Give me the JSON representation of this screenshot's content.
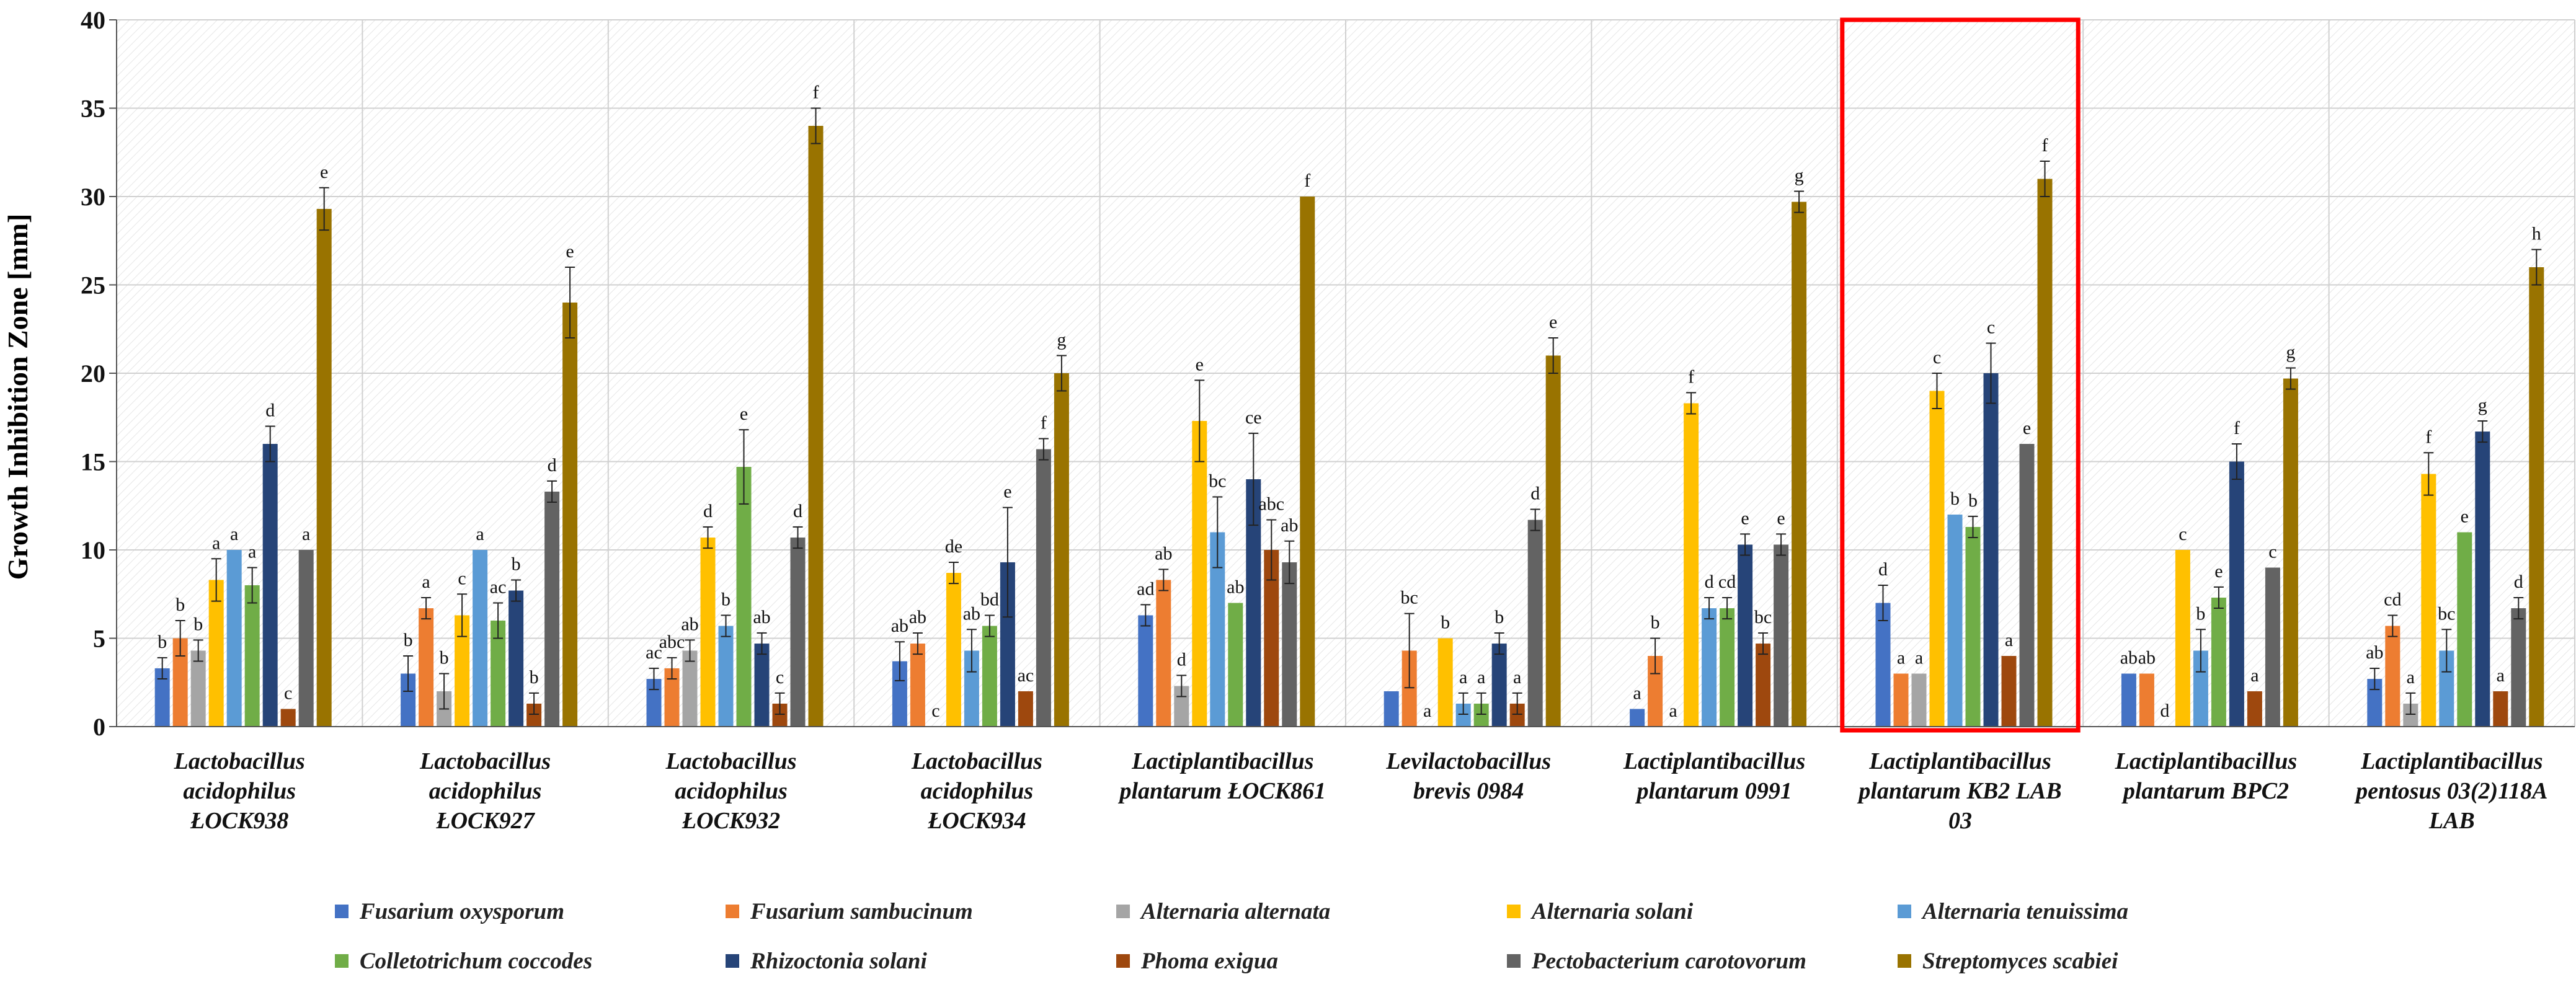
{
  "chart_data": {
    "type": "bar",
    "title": "",
    "ylabel": "Growth Inhibition Zone [mm]",
    "xlabel": "",
    "ylim": [
      0,
      40
    ],
    "yticks": [
      "0",
      "5",
      "10",
      "15",
      "20",
      "25",
      "30",
      "35",
      "40"
    ],
    "grid": true,
    "legend_position": "bottom",
    "categories": [
      [
        "Lactobacillus",
        "acidophilus",
        "ŁOCK938"
      ],
      [
        "Lactobacillus",
        "acidophilus",
        "ŁOCK927"
      ],
      [
        "Lactobacillus",
        "acidophilus",
        "ŁOCK932"
      ],
      [
        "Lactobacillus",
        "acidophilus",
        "ŁOCK934"
      ],
      [
        "Lactiplantibacillus",
        "plantarum ŁOCK861"
      ],
      [
        "Levilactobacillus",
        "brevis 0984"
      ],
      [
        "Lactiplantibacillus",
        "plantarum 0991"
      ],
      [
        "Lactiplantibacillus",
        "plantarum KB2 LAB",
        "03"
      ],
      [
        "Lactiplantibacillus",
        "plantarum BPC2"
      ],
      [
        "Lactiplantibacillus",
        "pentosus 03(2)118A",
        "LAB"
      ]
    ],
    "highlighted_category_index": 7,
    "series": [
      {
        "name": "Fusarium oxysporum",
        "color": "#4472C4",
        "values": [
          3.3,
          3.0,
          2.7,
          3.7,
          6.3,
          2.0,
          1.0,
          7.0,
          3.0,
          2.7
        ],
        "errors": [
          0.6,
          1.0,
          0.6,
          1.1,
          0.6,
          0,
          0,
          1.0,
          0,
          0.6
        ],
        "labels": [
          "b",
          "b",
          "ac",
          "ab",
          "ad",
          "",
          "a",
          "d",
          "ab",
          "ab"
        ]
      },
      {
        "name": "Fusarium sambucinum",
        "color": "#ED7D31",
        "values": [
          5.0,
          6.7,
          3.3,
          4.7,
          8.3,
          4.3,
          4.0,
          3.0,
          3.0,
          5.7
        ],
        "errors": [
          1.0,
          0.6,
          0.6,
          0.6,
          0.6,
          2.1,
          1.0,
          0,
          0,
          0.6
        ],
        "labels": [
          "b",
          "a",
          "abc",
          "ab",
          "ab",
          "bc",
          "b",
          "a",
          "ab",
          "cd"
        ]
      },
      {
        "name": "Alternaria alternata",
        "color": "#A5A5A5",
        "values": [
          4.3,
          2.0,
          4.3,
          0,
          2.3,
          0,
          0,
          3.0,
          0,
          1.3
        ],
        "errors": [
          0.6,
          1.0,
          0.6,
          0,
          0.6,
          0,
          0,
          0,
          0,
          0.6
        ],
        "labels": [
          "b",
          "b",
          "ab",
          "c",
          "d",
          "a",
          "a",
          "a",
          "d",
          "a"
        ]
      },
      {
        "name": "Alternaria solani",
        "color": "#FFC000",
        "values": [
          8.3,
          6.3,
          10.7,
          8.7,
          17.3,
          5.0,
          18.3,
          19.0,
          10.0,
          14.3
        ],
        "errors": [
          1.2,
          1.2,
          0.6,
          0.6,
          2.3,
          0,
          0.6,
          1.0,
          0,
          1.2
        ],
        "labels": [
          "a",
          "c",
          "d",
          "de",
          "e",
          "b",
          "f",
          "c",
          "c",
          "f"
        ]
      },
      {
        "name": "Alternaria tenuissima",
        "color": "#5B9BD5",
        "values": [
          10.0,
          10.0,
          5.7,
          4.3,
          11.0,
          1.3,
          6.7,
          12.0,
          4.3,
          4.3
        ],
        "errors": [
          0,
          0,
          0.6,
          1.2,
          2.0,
          0.6,
          0.6,
          0,
          1.2,
          1.2
        ],
        "labels": [
          "a",
          "a",
          "b",
          "ab",
          "bc",
          "a",
          "d",
          "b",
          "b",
          "bc"
        ]
      },
      {
        "name": "Colletotrichum coccodes",
        "color": "#70AD47",
        "values": [
          8.0,
          6.0,
          14.7,
          5.7,
          7.0,
          1.3,
          6.7,
          11.3,
          7.3,
          11.0
        ],
        "errors": [
          1.0,
          1.0,
          2.1,
          0.6,
          0,
          0.6,
          0.6,
          0.6,
          0.6,
          0
        ],
        "labels": [
          "a",
          "ac",
          "e",
          "bd",
          "ab",
          "a",
          "cd",
          "b",
          "e",
          "e"
        ]
      },
      {
        "name": "Rhizoctonia solani",
        "color": "#264478",
        "values": [
          16.0,
          7.7,
          4.7,
          9.3,
          14.0,
          4.7,
          10.3,
          20.0,
          15.0,
          16.7
        ],
        "errors": [
          1.0,
          0.6,
          0.6,
          3.1,
          2.6,
          0.6,
          0.6,
          1.7,
          1.0,
          0.6
        ],
        "labels": [
          "d",
          "b",
          "ab",
          "e",
          "ce",
          "b",
          "e",
          "c",
          "f",
          "g"
        ]
      },
      {
        "name": "Phoma exigua",
        "color": "#9E480E",
        "values": [
          1.0,
          1.3,
          1.3,
          2.0,
          10.0,
          1.3,
          4.7,
          4.0,
          2.0,
          2.0
        ],
        "errors": [
          0,
          0.6,
          0.6,
          0,
          1.7,
          0.6,
          0.6,
          0,
          0,
          0
        ],
        "labels": [
          "c",
          "b",
          "c",
          "ac",
          "abc",
          "a",
          "bc",
          "a",
          "a",
          "a"
        ]
      },
      {
        "name": "Pectobacterium carotovorum",
        "color": "#636363",
        "values": [
          10.0,
          13.3,
          10.7,
          15.7,
          9.3,
          11.7,
          10.3,
          16.0,
          9.0,
          6.7
        ],
        "errors": [
          0,
          0.6,
          0.6,
          0.6,
          1.2,
          0.6,
          0.6,
          0,
          0,
          0.6
        ],
        "labels": [
          "a",
          "d",
          "d",
          "f",
          "ab",
          "d",
          "e",
          "e",
          "c",
          "d"
        ]
      },
      {
        "name": "Streptomyces scabiei",
        "color": "#997300",
        "values": [
          29.3,
          24.0,
          34.0,
          20.0,
          30.0,
          21.0,
          29.7,
          31.0,
          19.7,
          26.0
        ],
        "errors": [
          1.2,
          2.0,
          1.0,
          1.0,
          0,
          1.0,
          0.6,
          1.0,
          0.6,
          1.0
        ],
        "labels": [
          "e",
          "e",
          "f",
          "g",
          "f",
          "e",
          "g",
          "f",
          "g",
          "h"
        ]
      }
    ]
  }
}
